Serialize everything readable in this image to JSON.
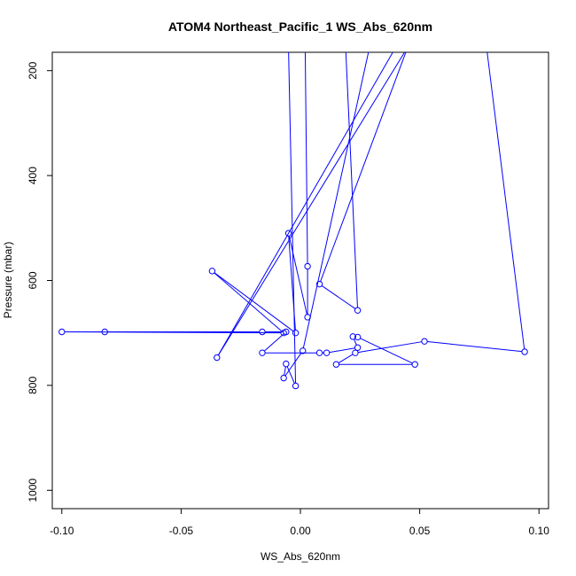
{
  "chart_data": {
    "type": "line",
    "title": "ATOM4 Northeast_Pacific_1 WS_Abs_620nm",
    "xlabel": "WS_Abs_620nm",
    "ylabel": "Pressure (mbar)",
    "xlim": [
      -0.104,
      0.104
    ],
    "ylim": [
      1035,
      165
    ],
    "y_reversed": true,
    "xticks": [
      -0.1,
      -0.05,
      0.0,
      0.05,
      0.1
    ],
    "xtick_labels": [
      "-0.10",
      "-0.05",
      "0.00",
      "0.05",
      "0.10"
    ],
    "yticks": [
      200,
      400,
      600,
      800,
      1000
    ],
    "ytick_labels": [
      "200",
      "400",
      "600",
      "800",
      "1000"
    ],
    "grid": false,
    "color": "#0000ff",
    "series": [
      {
        "x": [
          -0.003,
          0.002,
          0.003,
          0.003,
          -0.005,
          -0.002,
          -0.037,
          -0.007,
          -0.1,
          -0.082,
          -0.016,
          -0.006,
          -0.016,
          0.008,
          0.011,
          0.024,
          0.022,
          0.024,
          0.048,
          0.015,
          0.023,
          0.052,
          0.094,
          0.078,
          0.04,
          -0.035,
          0.045,
          0.008,
          0.024,
          0.018,
          0.022,
          0.037,
          0.029,
          0.001,
          -0.007,
          -0.006,
          -0.002,
          -0.005
        ],
        "y": [
          155,
          155,
          573,
          670,
          510,
          700,
          582,
          700,
          698,
          698,
          698,
          698,
          738,
          738,
          738,
          728,
          707,
          708,
          760,
          760,
          738,
          716,
          736,
          155,
          155,
          747,
          155,
          607,
          657,
          60,
          155,
          155,
          155,
          734,
          786,
          759,
          801,
          155
        ]
      }
    ]
  }
}
